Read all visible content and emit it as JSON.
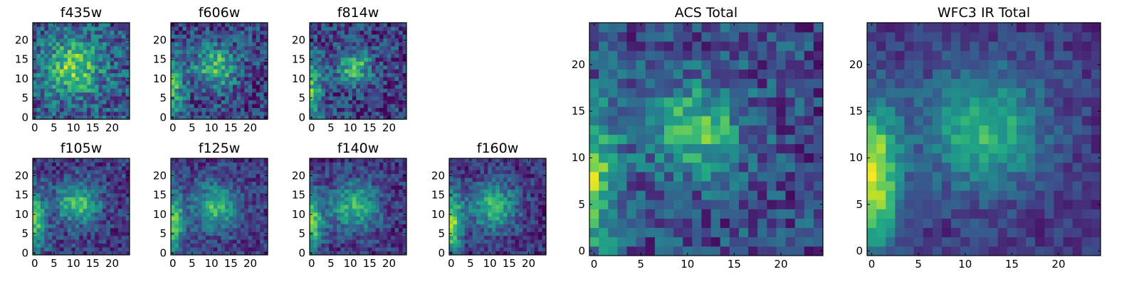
{
  "chart_data": [
    {
      "type": "heatmap",
      "title": "f435w",
      "grid_size": 25,
      "xticks": [
        0,
        5,
        10,
        15,
        20
      ],
      "yticks": [
        0,
        5,
        10,
        15,
        20
      ],
      "colormap": "viridis",
      "peak": {
        "x": 10,
        "y": 13
      },
      "peak_width": 5.0,
      "left_edge": 0.0,
      "noise": 0.3,
      "base": 0.55
    },
    {
      "type": "heatmap",
      "title": "f606w",
      "grid_size": 25,
      "xticks": [
        0,
        5,
        10,
        15,
        20
      ],
      "yticks": [
        0,
        5,
        10,
        15,
        20
      ],
      "colormap": "viridis",
      "peak": {
        "x": 11,
        "y": 13
      },
      "peak_width": 4.0,
      "left_edge": 0.45,
      "noise": 0.28,
      "base": 0.4
    },
    {
      "type": "heatmap",
      "title": "f814w",
      "grid_size": 25,
      "xticks": [
        0,
        5,
        10,
        15,
        20
      ],
      "yticks": [
        0,
        5,
        10,
        15,
        20
      ],
      "colormap": "viridis",
      "peak": {
        "x": 11,
        "y": 13
      },
      "peak_width": 3.0,
      "left_edge": 0.5,
      "noise": 0.28,
      "base": 0.4
    },
    {
      "type": "heatmap",
      "title": "f105w",
      "grid_size": 25,
      "xticks": [
        0,
        5,
        10,
        15,
        20
      ],
      "yticks": [
        0,
        5,
        10,
        15,
        20
      ],
      "colormap": "viridis",
      "peak": {
        "x": 11,
        "y": 13
      },
      "peak_width": 4.0,
      "left_edge": 0.55,
      "noise": 0.22,
      "base": 0.35
    },
    {
      "type": "heatmap",
      "title": "f125w",
      "grid_size": 25,
      "xticks": [
        0,
        5,
        10,
        15,
        20
      ],
      "yticks": [
        0,
        5,
        10,
        15,
        20
      ],
      "colormap": "viridis",
      "peak": {
        "x": 11,
        "y": 12
      },
      "peak_width": 4.0,
      "left_edge": 0.6,
      "noise": 0.2,
      "base": 0.35
    },
    {
      "type": "heatmap",
      "title": "f140w",
      "grid_size": 25,
      "xticks": [
        0,
        5,
        10,
        15,
        20
      ],
      "yticks": [
        0,
        5,
        10,
        15,
        20
      ],
      "colormap": "viridis",
      "peak": {
        "x": 11,
        "y": 12
      },
      "peak_width": 4.5,
      "left_edge": 0.6,
      "noise": 0.2,
      "base": 0.3
    },
    {
      "type": "heatmap",
      "title": "f160w",
      "grid_size": 25,
      "xticks": [
        0,
        5,
        10,
        15,
        20
      ],
      "yticks": [
        0,
        5,
        10,
        15,
        20
      ],
      "colormap": "viridis",
      "peak": {
        "x": 11,
        "y": 12
      },
      "peak_width": 4.5,
      "left_edge": 0.7,
      "noise": 0.2,
      "base": 0.28
    },
    {
      "type": "heatmap",
      "title": "ACS Total",
      "grid_size": 25,
      "xticks": [
        0,
        5,
        10,
        15,
        20
      ],
      "yticks": [
        0,
        5,
        10,
        15,
        20
      ],
      "colormap": "viridis",
      "peak": {
        "x": 11,
        "y": 13
      },
      "peak_width": 3.5,
      "left_edge": 0.55,
      "noise": 0.25,
      "base": 0.45
    },
    {
      "type": "heatmap",
      "title": "WFC3 IR Total",
      "grid_size": 25,
      "xticks": [
        0,
        5,
        10,
        15,
        20
      ],
      "yticks": [
        0,
        5,
        10,
        15,
        20
      ],
      "colormap": "viridis",
      "peak": {
        "x": 12,
        "y": 13
      },
      "peak_width": 4.5,
      "left_edge": 0.8,
      "noise": 0.14,
      "base": 0.32
    }
  ]
}
